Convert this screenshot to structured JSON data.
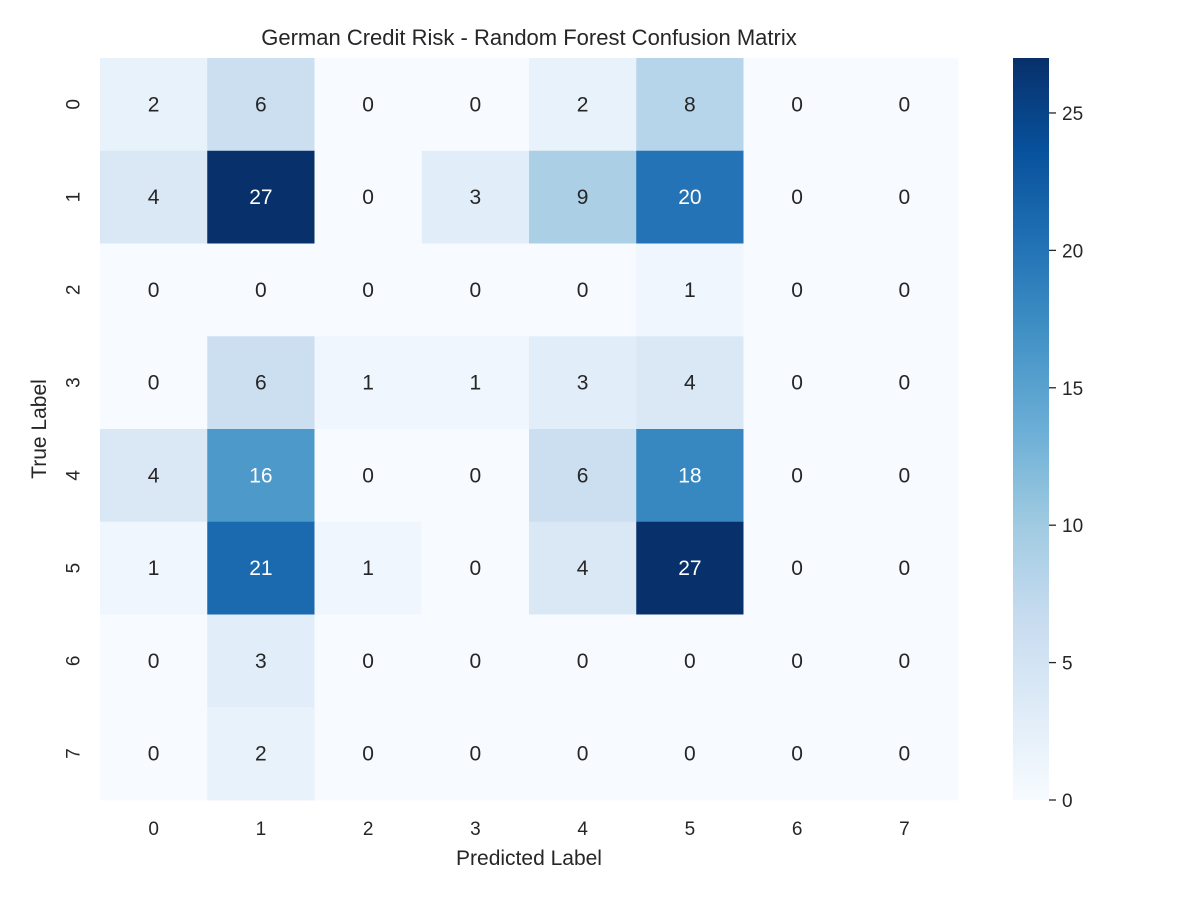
{
  "chart_data": {
    "type": "heatmap",
    "title": "German Credit Risk - Random Forest Confusion Matrix",
    "xlabel": "Predicted Label",
    "ylabel": "True Label",
    "x_categories": [
      "0",
      "1",
      "2",
      "3",
      "4",
      "5",
      "6",
      "7"
    ],
    "y_categories": [
      "0",
      "1",
      "2",
      "3",
      "4",
      "5",
      "6",
      "7"
    ],
    "values": [
      [
        2,
        6,
        0,
        0,
        2,
        8,
        0,
        0
      ],
      [
        4,
        27,
        0,
        3,
        9,
        20,
        0,
        0
      ],
      [
        0,
        0,
        0,
        0,
        0,
        1,
        0,
        0
      ],
      [
        0,
        6,
        1,
        1,
        3,
        4,
        0,
        0
      ],
      [
        4,
        16,
        0,
        0,
        6,
        18,
        0,
        0
      ],
      [
        1,
        21,
        1,
        0,
        4,
        27,
        0,
        0
      ],
      [
        0,
        3,
        0,
        0,
        0,
        0,
        0,
        0
      ],
      [
        0,
        2,
        0,
        0,
        0,
        0,
        0,
        0
      ]
    ],
    "colormap": "Blues",
    "colorbar": {
      "range": [
        0,
        27
      ],
      "ticks": [
        0,
        5,
        10,
        15,
        20,
        25
      ]
    },
    "annotations": true,
    "grid": false
  }
}
